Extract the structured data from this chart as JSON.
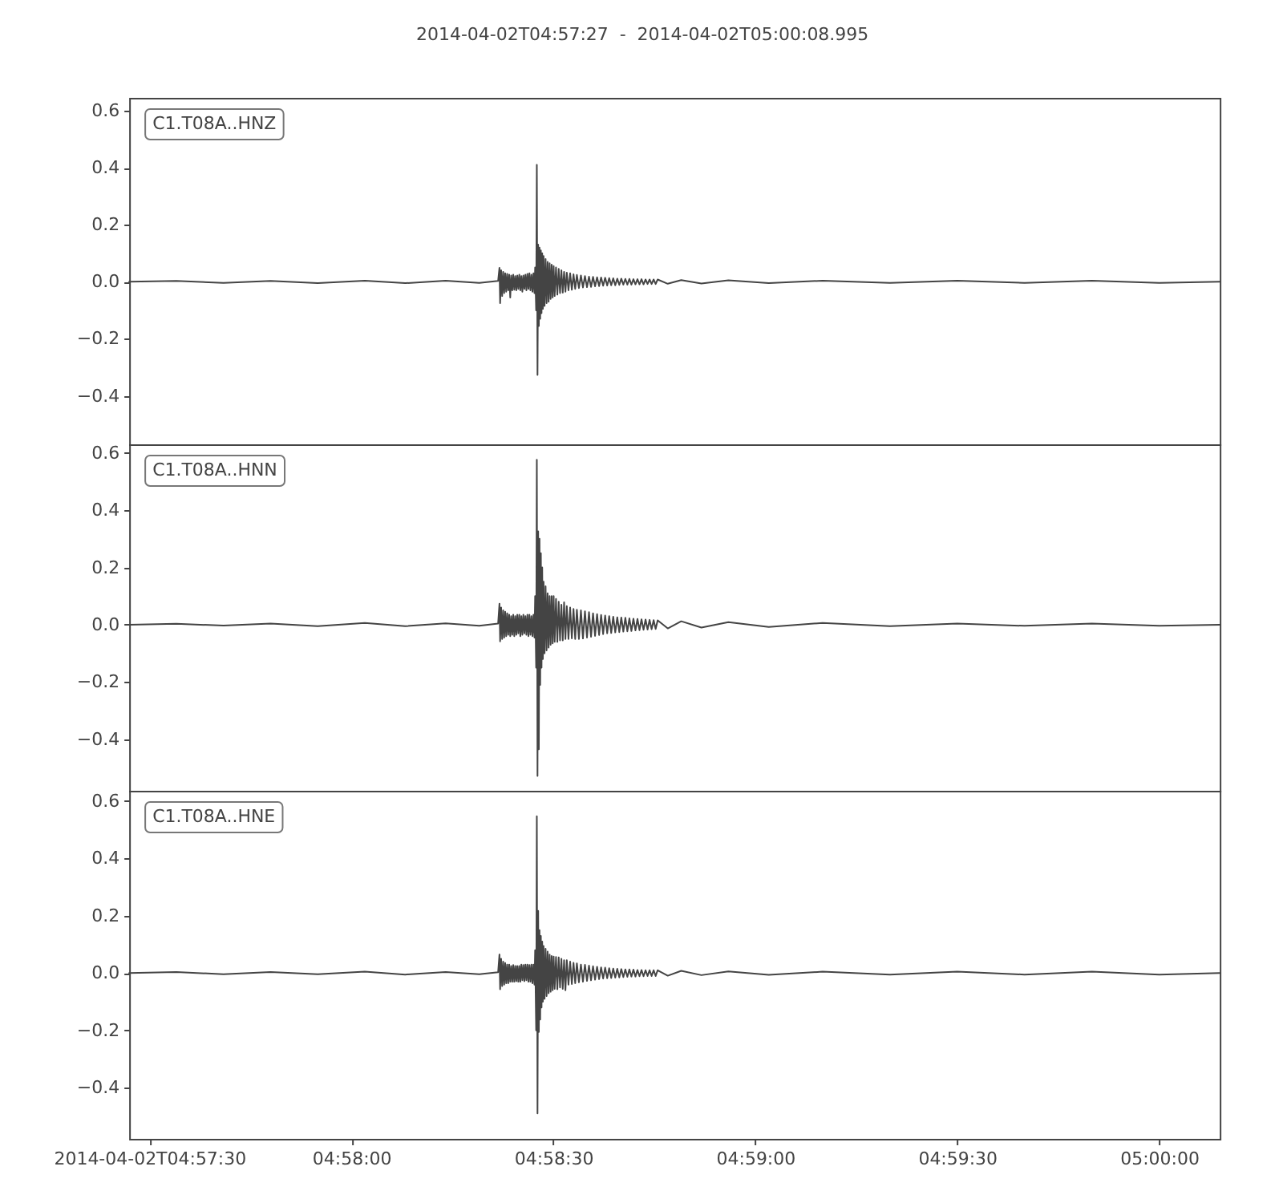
{
  "chart_data": [
    {
      "type": "line",
      "title": "2014-04-02T04:57:27  -  2014-04-02T05:00:08.995",
      "annotations": [
        "C1.T08A..HNZ"
      ],
      "tick_labels": "y",
      "xlim": [
        "2014-04-02T04:57:27",
        "2014-04-02T05:00:08.995"
      ],
      "ylim": [
        -0.57,
        0.645
      ],
      "yticks": [
        {
          "value": -0.4,
          "label": "−0.4"
        },
        {
          "value": -0.2,
          "label": "−0.2"
        },
        {
          "value": 0,
          "label": "0.0"
        },
        0.2,
        0.4,
        0.6
      ],
      "x": [
        "2014-04-02T04:57:27",
        "2014-04-02T04:57:34",
        "2014-04-02T04:57:41",
        "2014-04-02T04:57:48",
        "2014-04-02T04:57:55",
        "2014-04-02T04:58:02",
        "2014-04-02T04:58:08",
        "2014-04-02T04:58:14",
        "2014-04-02T04:58:19",
        "2014-04-02T04:58:21.8",
        "2014-04-02T04:58:22",
        "2014-04-02T04:58:22.1",
        "2014-04-02T04:58:22.25",
        "2014-04-02T04:58:22.4",
        "2014-04-02T04:58:22.55",
        "2014-04-02T04:58:22.7",
        "2014-04-02T04:58:22.85",
        "2014-04-02T04:58:23",
        "2014-04-02T04:58:23.15",
        "2014-04-02T04:58:23.3",
        "2014-04-02T04:58:23.45",
        "2014-04-02T04:58:23.6",
        "2014-04-02T04:58:23.75",
        "2014-04-02T04:58:23.9",
        "2014-04-02T04:58:24.05",
        "2014-04-02T04:58:24.2",
        "2014-04-02T04:58:24.35",
        "2014-04-02T04:58:24.5",
        "2014-04-02T04:58:24.65",
        "2014-04-02T04:58:24.8",
        "2014-04-02T04:58:24.95",
        "2014-04-02T04:58:25.1",
        "2014-04-02T04:58:25.25",
        "2014-04-02T04:58:25.4",
        "2014-04-02T04:58:25.55",
        "2014-04-02T04:58:25.7",
        "2014-04-02T04:58:25.85",
        "2014-04-02T04:58:26",
        "2014-04-02T04:58:26.15",
        "2014-04-02T04:58:26.3",
        "2014-04-02T04:58:26.45",
        "2014-04-02T04:58:26.6",
        "2014-04-02T04:58:26.75",
        "2014-04-02T04:58:26.9",
        "2014-04-02T04:58:27.05",
        "2014-04-02T04:58:27.2",
        "2014-04-02T04:58:27.3",
        "2014-04-02T04:58:27.45",
        "2014-04-02T04:58:27.55",
        "2014-04-02T04:58:27.65",
        "2014-04-02T04:58:27.75",
        "2014-04-02T04:58:27.85",
        "2014-04-02T04:58:27.95",
        "2014-04-02T04:58:28.05",
        "2014-04-02T04:58:28.15",
        "2014-04-02T04:58:28.25",
        "2014-04-02T04:58:28.35",
        "2014-04-02T04:58:28.45",
        "2014-04-02T04:58:28.55",
        "2014-04-02T04:58:28.7",
        "2014-04-02T04:58:28.85",
        "2014-04-02T04:58:29",
        "2014-04-02T04:58:29.15",
        "2014-04-02T04:58:29.3",
        "2014-04-02T04:58:29.45",
        "2014-04-02T04:58:29.6",
        "2014-04-02T04:58:29.75",
        "2014-04-02T04:58:29.9",
        "2014-04-02T04:58:30.05",
        "2014-04-02T04:58:30.2",
        "2014-04-02T04:58:30.4",
        "2014-04-02T04:58:30.6",
        "2014-04-02T04:58:30.8",
        "2014-04-02T04:58:31",
        "2014-04-02T04:58:31.2",
        "2014-04-02T04:58:31.4",
        "2014-04-02T04:58:31.6",
        "2014-04-02T04:58:31.8",
        "2014-04-02T04:58:32",
        "2014-04-02T04:58:32.25",
        "2014-04-02T04:58:32.5",
        "2014-04-02T04:58:32.75",
        "2014-04-02T04:58:33",
        "2014-04-02T04:58:33.25",
        "2014-04-02T04:58:33.5",
        "2014-04-02T04:58:33.8",
        "2014-04-02T04:58:34.1",
        "2014-04-02T04:58:34.4",
        "2014-04-02T04:58:34.7",
        "2014-04-02T04:58:35",
        "2014-04-02T04:58:35.3",
        "2014-04-02T04:58:35.6",
        "2014-04-02T04:58:35.9",
        "2014-04-02T04:58:36.2",
        "2014-04-02T04:58:36.5",
        "2014-04-02T04:58:36.8",
        "2014-04-02T04:58:37.1",
        "2014-04-02T04:58:37.4",
        "2014-04-02T04:58:37.7",
        "2014-04-02T04:58:38",
        "2014-04-02T04:58:38.3",
        "2014-04-02T04:58:38.6",
        "2014-04-02T04:58:38.9",
        "2014-04-02T04:58:39.2",
        "2014-04-02T04:58:39.5",
        "2014-04-02T04:58:39.8",
        "2014-04-02T04:58:40.1",
        "2014-04-02T04:58:40.4",
        "2014-04-02T04:58:40.7",
        "2014-04-02T04:58:41",
        "2014-04-02T04:58:41.3",
        "2014-04-02T04:58:41.6",
        "2014-04-02T04:58:41.9",
        "2014-04-02T04:58:42.2",
        "2014-04-02T04:58:42.5",
        "2014-04-02T04:58:42.8",
        "2014-04-02T04:58:43.1",
        "2014-04-02T04:58:43.4",
        "2014-04-02T04:58:43.7",
        "2014-04-02T04:58:44",
        "2014-04-02T04:58:44.3",
        "2014-04-02T04:58:44.6",
        "2014-04-02T04:58:44.9",
        "2014-04-02T04:58:45.2",
        "2014-04-02T04:58:45.5",
        "2014-04-02T04:58:47",
        "2014-04-02T04:58:49",
        "2014-04-02T04:58:52",
        "2014-04-02T04:58:56",
        "2014-04-02T04:59:02",
        "2014-04-02T04:59:10",
        "2014-04-02T04:59:20",
        "2014-04-02T04:59:30",
        "2014-04-02T04:59:40",
        "2014-04-02T04:59:50",
        "2014-04-02T05:00:00",
        "2014-04-02T05:00:08.995"
      ],
      "series": [
        {
          "color": "#444444",
          "values": [
            0,
            0.003,
            -0.004,
            0.003,
            -0.005,
            0.004,
            -0.005,
            0.004,
            -0.004,
            0.003,
            0.049,
            -0.075,
            0.04,
            -0.05,
            0.035,
            -0.04,
            0.03,
            -0.035,
            0.028,
            -0.03,
            0.025,
            -0.055,
            0.022,
            -0.03,
            0.025,
            -0.028,
            0.02,
            -0.03,
            0.022,
            -0.025,
            0.025,
            -0.03,
            0.02,
            -0.035,
            0.022,
            -0.025,
            0.025,
            -0.03,
            0.028,
            -0.025,
            0.03,
            -0.03,
            0.025,
            -0.035,
            0.03,
            -0.04,
            0.05,
            -0.1,
            0.41,
            -0.327,
            0.13,
            -0.155,
            0.12,
            -0.13,
            0.11,
            -0.11,
            0.1,
            -0.095,
            0.09,
            -0.085,
            0.08,
            -0.075,
            0.07,
            -0.07,
            0.065,
            -0.06,
            0.06,
            -0.055,
            0.055,
            -0.05,
            0.05,
            -0.045,
            0.045,
            -0.04,
            0.04,
            -0.038,
            0.035,
            -0.035,
            0.032,
            -0.03,
            0.03,
            -0.028,
            0.026,
            -0.025,
            0.024,
            -0.022,
            0.022,
            -0.02,
            0.02,
            -0.019,
            0.018,
            -0.018,
            0.017,
            -0.016,
            0.016,
            -0.015,
            0.015,
            -0.014,
            0.014,
            -0.013,
            0.013,
            -0.012,
            0.012,
            -0.012,
            0.011,
            -0.011,
            0.011,
            -0.01,
            0.01,
            -0.01,
            0.01,
            -0.01,
            0.009,
            -0.009,
            0.009,
            -0.009,
            0.009,
            -0.009,
            0.008,
            -0.008,
            0.008,
            -0.008,
            0.008,
            -0.008,
            0.008,
            -0.007,
            0.006,
            -0.006,
            0.005,
            -0.005,
            0.004,
            -0.004,
            0.004,
            -0.004,
            0.004,
            -0.004,
            0
          ]
        }
      ]
    },
    {
      "type": "line",
      "annotations": [
        "C1.T08A..HNN"
      ],
      "tick_labels": "y",
      "xlim": [
        "2014-04-02T04:57:27",
        "2014-04-02T05:00:08.995"
      ],
      "ylim": [
        -0.58,
        0.63
      ],
      "yticks": [
        {
          "value": -0.4,
          "label": "−0.4"
        },
        {
          "value": -0.2,
          "label": "−0.2"
        },
        {
          "value": 0,
          "label": "0.0"
        },
        0.2,
        0.4,
        0.6
      ],
      "x": [
        "2014-04-02T04:57:27",
        "2014-04-02T04:57:34",
        "2014-04-02T04:57:41",
        "2014-04-02T04:57:48",
        "2014-04-02T04:57:55",
        "2014-04-02T04:58:02",
        "2014-04-02T04:58:08",
        "2014-04-02T04:58:14",
        "2014-04-02T04:58:19",
        "2014-04-02T04:58:21.8",
        "2014-04-02T04:58:22",
        "2014-04-02T04:58:22.1",
        "2014-04-02T04:58:22.25",
        "2014-04-02T04:58:22.4",
        "2014-04-02T04:58:22.55",
        "2014-04-02T04:58:22.7",
        "2014-04-02T04:58:22.85",
        "2014-04-02T04:58:23",
        "2014-04-02T04:58:23.15",
        "2014-04-02T04:58:23.3",
        "2014-04-02T04:58:23.45",
        "2014-04-02T04:58:23.6",
        "2014-04-02T04:58:23.75",
        "2014-04-02T04:58:23.9",
        "2014-04-02T04:58:24.05",
        "2014-04-02T04:58:24.2",
        "2014-04-02T04:58:24.35",
        "2014-04-02T04:58:24.5",
        "2014-04-02T04:58:24.65",
        "2014-04-02T04:58:24.8",
        "2014-04-02T04:58:24.95",
        "2014-04-02T04:58:25.1",
        "2014-04-02T04:58:25.25",
        "2014-04-02T04:58:25.4",
        "2014-04-02T04:58:25.55",
        "2014-04-02T04:58:25.7",
        "2014-04-02T04:58:25.85",
        "2014-04-02T04:58:26",
        "2014-04-02T04:58:26.15",
        "2014-04-02T04:58:26.3",
        "2014-04-02T04:58:26.45",
        "2014-04-02T04:58:26.6",
        "2014-04-02T04:58:26.75",
        "2014-04-02T04:58:26.9",
        "2014-04-02T04:58:27.05",
        "2014-04-02T04:58:27.2",
        "2014-04-02T04:58:27.3",
        "2014-04-02T04:58:27.45",
        "2014-04-02T04:58:27.55",
        "2014-04-02T04:58:27.65",
        "2014-04-02T04:58:27.75",
        "2014-04-02T04:58:27.85",
        "2014-04-02T04:58:27.95",
        "2014-04-02T04:58:28.05",
        "2014-04-02T04:58:28.15",
        "2014-04-02T04:58:28.25",
        "2014-04-02T04:58:28.35",
        "2014-04-02T04:58:28.45",
        "2014-04-02T04:58:28.55",
        "2014-04-02T04:58:28.7",
        "2014-04-02T04:58:28.85",
        "2014-04-02T04:58:29",
        "2014-04-02T04:58:29.15",
        "2014-04-02T04:58:29.3",
        "2014-04-02T04:58:29.45",
        "2014-04-02T04:58:29.6",
        "2014-04-02T04:58:29.75",
        "2014-04-02T04:58:29.9",
        "2014-04-02T04:58:30.05",
        "2014-04-02T04:58:30.2",
        "2014-04-02T04:58:30.4",
        "2014-04-02T04:58:30.6",
        "2014-04-02T04:58:30.8",
        "2014-04-02T04:58:31",
        "2014-04-02T04:58:31.2",
        "2014-04-02T04:58:31.4",
        "2014-04-02T04:58:31.6",
        "2014-04-02T04:58:31.8",
        "2014-04-02T04:58:32",
        "2014-04-02T04:58:32.25",
        "2014-04-02T04:58:32.5",
        "2014-04-02T04:58:32.75",
        "2014-04-02T04:58:33",
        "2014-04-02T04:58:33.25",
        "2014-04-02T04:58:33.5",
        "2014-04-02T04:58:33.8",
        "2014-04-02T04:58:34.1",
        "2014-04-02T04:58:34.4",
        "2014-04-02T04:58:34.7",
        "2014-04-02T04:58:35",
        "2014-04-02T04:58:35.3",
        "2014-04-02T04:58:35.6",
        "2014-04-02T04:58:35.9",
        "2014-04-02T04:58:36.2",
        "2014-04-02T04:58:36.5",
        "2014-04-02T04:58:36.8",
        "2014-04-02T04:58:37.1",
        "2014-04-02T04:58:37.4",
        "2014-04-02T04:58:37.7",
        "2014-04-02T04:58:38",
        "2014-04-02T04:58:38.3",
        "2014-04-02T04:58:38.6",
        "2014-04-02T04:58:38.9",
        "2014-04-02T04:58:39.2",
        "2014-04-02T04:58:39.5",
        "2014-04-02T04:58:39.8",
        "2014-04-02T04:58:40.1",
        "2014-04-02T04:58:40.4",
        "2014-04-02T04:58:40.7",
        "2014-04-02T04:58:41",
        "2014-04-02T04:58:41.3",
        "2014-04-02T04:58:41.6",
        "2014-04-02T04:58:41.9",
        "2014-04-02T04:58:42.2",
        "2014-04-02T04:58:42.5",
        "2014-04-02T04:58:42.8",
        "2014-04-02T04:58:43.1",
        "2014-04-02T04:58:43.4",
        "2014-04-02T04:58:43.7",
        "2014-04-02T04:58:44",
        "2014-04-02T04:58:44.3",
        "2014-04-02T04:58:44.6",
        "2014-04-02T04:58:44.9",
        "2014-04-02T04:58:45.2",
        "2014-04-02T04:58:45.5",
        "2014-04-02T04:58:47",
        "2014-04-02T04:58:49",
        "2014-04-02T04:58:52",
        "2014-04-02T04:58:56",
        "2014-04-02T04:59:02",
        "2014-04-02T04:59:10",
        "2014-04-02T04:59:20",
        "2014-04-02T04:59:30",
        "2014-04-02T04:59:40",
        "2014-04-02T04:59:50",
        "2014-04-02T05:00:00",
        "2014-04-02T05:00:08.995"
      ],
      "series": [
        {
          "color": "#444444",
          "values": [
            0,
            0.003,
            -0.003,
            0.004,
            -0.005,
            0.006,
            -0.005,
            0.005,
            -0.004,
            0.004,
            0.073,
            -0.058,
            0.06,
            -0.05,
            0.05,
            -0.045,
            0.045,
            -0.04,
            0.04,
            -0.035,
            0.035,
            -0.04,
            0.03,
            -0.035,
            0.035,
            -0.04,
            0.03,
            -0.035,
            0.035,
            -0.03,
            0.035,
            -0.04,
            0.03,
            -0.035,
            0.035,
            -0.03,
            0.03,
            -0.035,
            0.035,
            -0.04,
            0.035,
            -0.035,
            0.03,
            -0.04,
            0.035,
            -0.045,
            0.1,
            -0.15,
            0.576,
            -0.528,
            0.326,
            -0.435,
            0.3,
            -0.21,
            0.25,
            -0.15,
            0.2,
            -0.12,
            0.15,
            -0.1,
            0.134,
            -0.09,
            0.11,
            -0.08,
            0.1,
            -0.07,
            0.1,
            -0.065,
            0.1,
            -0.06,
            0.09,
            -0.06,
            0.08,
            -0.055,
            0.07,
            -0.055,
            0.078,
            -0.05,
            0.065,
            -0.05,
            0.06,
            -0.048,
            0.055,
            -0.05,
            0.052,
            -0.05,
            0.05,
            -0.048,
            0.047,
            -0.045,
            0.044,
            -0.042,
            0.04,
            -0.039,
            0.037,
            -0.036,
            0.034,
            -0.033,
            0.032,
            -0.03,
            0.03,
            -0.029,
            0.028,
            -0.027,
            0.026,
            -0.026,
            0.025,
            -0.024,
            0.024,
            -0.023,
            0.022,
            -0.022,
            0.021,
            -0.02,
            0.02,
            -0.019,
            0.019,
            -0.018,
            0.018,
            -0.017,
            0.017,
            -0.016,
            0.016,
            -0.015,
            0.015,
            -0.013,
            0.012,
            -0.01,
            0.009,
            -0.008,
            0.006,
            -0.005,
            0.004,
            -0.004,
            0.004,
            -0.004,
            0
          ]
        }
      ]
    },
    {
      "type": "line",
      "annotations": [
        "C1.T08A..HNE"
      ],
      "xlim": [
        "2014-04-02T04:57:27",
        "2014-04-02T05:00:08.995"
      ],
      "ylim": [
        -0.578,
        0.636
      ],
      "xticks": [
        "2014-04-02T04:57:30",
        {
          "value": "2014-04-02T04:58:00",
          "label": "04:58:00"
        },
        {
          "value": "2014-04-02T04:58:30",
          "label": "04:58:30"
        },
        {
          "value": "2014-04-02T04:59:00",
          "label": "04:59:00"
        },
        {
          "value": "2014-04-02T04:59:30",
          "label": "04:59:30"
        },
        {
          "value": "2014-04-02T05:00:00",
          "label": "05:00:00"
        }
      ],
      "yticks": [
        {
          "value": -0.4,
          "label": "−0.4"
        },
        {
          "value": -0.2,
          "label": "−0.2"
        },
        {
          "value": 0,
          "label": "0.0"
        },
        0.2,
        0.4,
        0.6
      ],
      "x": [
        "2014-04-02T04:57:27",
        "2014-04-02T04:57:34",
        "2014-04-02T04:57:41",
        "2014-04-02T04:57:48",
        "2014-04-02T04:57:55",
        "2014-04-02T04:58:02",
        "2014-04-02T04:58:08",
        "2014-04-02T04:58:14",
        "2014-04-02T04:58:19",
        "2014-04-02T04:58:21.8",
        "2014-04-02T04:58:22",
        "2014-04-02T04:58:22.1",
        "2014-04-02T04:58:22.25",
        "2014-04-02T04:58:22.4",
        "2014-04-02T04:58:22.55",
        "2014-04-02T04:58:22.7",
        "2014-04-02T04:58:22.85",
        "2014-04-02T04:58:23",
        "2014-04-02T04:58:23.15",
        "2014-04-02T04:58:23.3",
        "2014-04-02T04:58:23.45",
        "2014-04-02T04:58:23.6",
        "2014-04-02T04:58:23.75",
        "2014-04-02T04:58:23.9",
        "2014-04-02T04:58:24.05",
        "2014-04-02T04:58:24.2",
        "2014-04-02T04:58:24.35",
        "2014-04-02T04:58:24.5",
        "2014-04-02T04:58:24.65",
        "2014-04-02T04:58:24.8",
        "2014-04-02T04:58:24.95",
        "2014-04-02T04:58:25.1",
        "2014-04-02T04:58:25.25",
        "2014-04-02T04:58:25.4",
        "2014-04-02T04:58:25.55",
        "2014-04-02T04:58:25.7",
        "2014-04-02T04:58:25.85",
        "2014-04-02T04:58:26",
        "2014-04-02T04:58:26.15",
        "2014-04-02T04:58:26.3",
        "2014-04-02T04:58:26.45",
        "2014-04-02T04:58:26.6",
        "2014-04-02T04:58:26.75",
        "2014-04-02T04:58:26.9",
        "2014-04-02T04:58:27.05",
        "2014-04-02T04:58:27.2",
        "2014-04-02T04:58:27.3",
        "2014-04-02T04:58:27.45",
        "2014-04-02T04:58:27.55",
        "2014-04-02T04:58:27.65",
        "2014-04-02T04:58:27.75",
        "2014-04-02T04:58:27.85",
        "2014-04-02T04:58:27.95",
        "2014-04-02T04:58:28.05",
        "2014-04-02T04:58:28.15",
        "2014-04-02T04:58:28.25",
        "2014-04-02T04:58:28.35",
        "2014-04-02T04:58:28.45",
        "2014-04-02T04:58:28.55",
        "2014-04-02T04:58:28.7",
        "2014-04-02T04:58:28.85",
        "2014-04-02T04:58:29",
        "2014-04-02T04:58:29.15",
        "2014-04-02T04:58:29.3",
        "2014-04-02T04:58:29.45",
        "2014-04-02T04:58:29.6",
        "2014-04-02T04:58:29.75",
        "2014-04-02T04:58:29.9",
        "2014-04-02T04:58:30.05",
        "2014-04-02T04:58:30.2",
        "2014-04-02T04:58:30.4",
        "2014-04-02T04:58:30.6",
        "2014-04-02T04:58:30.8",
        "2014-04-02T04:58:31",
        "2014-04-02T04:58:31.2",
        "2014-04-02T04:58:31.4",
        "2014-04-02T04:58:31.6",
        "2014-04-02T04:58:31.8",
        "2014-04-02T04:58:32",
        "2014-04-02T04:58:32.25",
        "2014-04-02T04:58:32.5",
        "2014-04-02T04:58:32.75",
        "2014-04-02T04:58:33",
        "2014-04-02T04:58:33.25",
        "2014-04-02T04:58:33.5",
        "2014-04-02T04:58:33.8",
        "2014-04-02T04:58:34.1",
        "2014-04-02T04:58:34.4",
        "2014-04-02T04:58:34.7",
        "2014-04-02T04:58:35",
        "2014-04-02T04:58:35.3",
        "2014-04-02T04:58:35.6",
        "2014-04-02T04:58:35.9",
        "2014-04-02T04:58:36.2",
        "2014-04-02T04:58:36.5",
        "2014-04-02T04:58:36.8",
        "2014-04-02T04:58:37.1",
        "2014-04-02T04:58:37.4",
        "2014-04-02T04:58:37.7",
        "2014-04-02T04:58:38",
        "2014-04-02T04:58:38.3",
        "2014-04-02T04:58:38.6",
        "2014-04-02T04:58:38.9",
        "2014-04-02T04:58:39.2",
        "2014-04-02T04:58:39.5",
        "2014-04-02T04:58:39.8",
        "2014-04-02T04:58:40.1",
        "2014-04-02T04:58:40.4",
        "2014-04-02T04:58:40.7",
        "2014-04-02T04:58:41",
        "2014-04-02T04:58:41.3",
        "2014-04-02T04:58:41.6",
        "2014-04-02T04:58:41.9",
        "2014-04-02T04:58:42.2",
        "2014-04-02T04:58:42.5",
        "2014-04-02T04:58:42.8",
        "2014-04-02T04:58:43.1",
        "2014-04-02T04:58:43.4",
        "2014-04-02T04:58:43.7",
        "2014-04-02T04:58:44",
        "2014-04-02T04:58:44.3",
        "2014-04-02T04:58:44.6",
        "2014-04-02T04:58:44.9",
        "2014-04-02T04:58:45.2",
        "2014-04-02T04:58:45.5",
        "2014-04-02T04:58:47",
        "2014-04-02T04:58:49",
        "2014-04-02T04:58:52",
        "2014-04-02T04:58:56",
        "2014-04-02T04:59:02",
        "2014-04-02T04:59:10",
        "2014-04-02T04:59:20",
        "2014-04-02T04:59:30",
        "2014-04-02T04:59:40",
        "2014-04-02T04:59:50",
        "2014-04-02T05:00:00",
        "2014-04-02T05:00:08.995"
      ],
      "series": [
        {
          "color": "#444444",
          "values": [
            0,
            0.004,
            -0.004,
            0.004,
            -0.004,
            0.005,
            -0.005,
            0.004,
            -0.004,
            0.003,
            0.065,
            -0.056,
            0.05,
            -0.045,
            0.04,
            -0.04,
            0.035,
            -0.035,
            0.03,
            -0.035,
            0.03,
            -0.03,
            0.025,
            -0.03,
            0.028,
            -0.03,
            0.025,
            -0.028,
            0.025,
            -0.03,
            0.025,
            -0.03,
            0.03,
            -0.025,
            0.028,
            -0.028,
            0.03,
            -0.025,
            0.03,
            -0.03,
            0.028,
            -0.03,
            0.03,
            -0.035,
            0.03,
            -0.04,
            0.08,
            -0.2,
            0.547,
            -0.489,
            0.217,
            -0.205,
            0.15,
            -0.162,
            0.13,
            -0.12,
            0.11,
            -0.1,
            0.095,
            -0.09,
            0.085,
            -0.08,
            0.075,
            -0.07,
            0.065,
            -0.065,
            0.06,
            -0.06,
            0.058,
            -0.055,
            0.056,
            -0.056,
            0.055,
            -0.05,
            0.05,
            -0.055,
            0.045,
            -0.06,
            0.045,
            -0.04,
            0.04,
            -0.038,
            0.036,
            -0.035,
            0.034,
            -0.032,
            0.03,
            -0.03,
            0.029,
            -0.027,
            0.026,
            -0.025,
            0.024,
            -0.023,
            0.022,
            -0.021,
            0.02,
            -0.019,
            0.019,
            -0.018,
            0.017,
            -0.017,
            0.016,
            -0.016,
            0.015,
            -0.015,
            0.014,
            -0.014,
            0.013,
            -0.013,
            0.013,
            -0.012,
            0.012,
            -0.012,
            0.011,
            -0.011,
            0.011,
            -0.011,
            0.01,
            -0.01,
            0.01,
            -0.01,
            0.01,
            -0.01,
            0.01,
            -0.009,
            0.008,
            -0.007,
            0.006,
            -0.006,
            0.005,
            -0.005,
            0.005,
            -0.005,
            0.005,
            -0.005,
            0
          ]
        }
      ]
    }
  ]
}
